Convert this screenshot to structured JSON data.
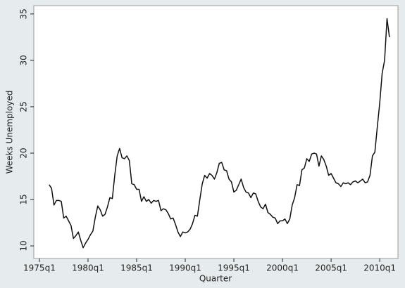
{
  "chart_data": {
    "type": "line",
    "x_label": "Quarter",
    "y_label": "Weeks Unemployed",
    "x": [
      64,
      65,
      66,
      67,
      68,
      69,
      70,
      71,
      72,
      73,
      74,
      75,
      76,
      77,
      78,
      79,
      80,
      81,
      82,
      83,
      84,
      85,
      86,
      87,
      88,
      89,
      90,
      91,
      92,
      93,
      94,
      95,
      96,
      97,
      98,
      99,
      100,
      101,
      102,
      103,
      104,
      105,
      106,
      107,
      108,
      109,
      110,
      111,
      112,
      113,
      114,
      115,
      116,
      117,
      118,
      119,
      120,
      121,
      122,
      123,
      124,
      125,
      126,
      127,
      128,
      129,
      130,
      131,
      132,
      133,
      134,
      135,
      136,
      137,
      138,
      139,
      140,
      141,
      142,
      143,
      144,
      145,
      146,
      147,
      148,
      149,
      150,
      151,
      152,
      153,
      154,
      155,
      156,
      157,
      158,
      159,
      160,
      161,
      162,
      163,
      164,
      165,
      166,
      167,
      168,
      169,
      170,
      171,
      172,
      173,
      174,
      175,
      176,
      177,
      178,
      179,
      180,
      181,
      182,
      183,
      184,
      185,
      186,
      187,
      188,
      189,
      190,
      191,
      192,
      193,
      194,
      195,
      196,
      197,
      198,
      199,
      200,
      201,
      202,
      203,
      204
    ],
    "values": [
      16.6,
      16.2,
      14.4,
      14.9,
      14.9,
      14.8,
      13.0,
      13.2,
      12.7,
      12.2,
      10.8,
      11.1,
      11.5,
      10.6,
      9.8,
      10.3,
      10.7,
      11.2,
      11.6,
      13.1,
      14.3,
      13.9,
      13.2,
      13.4,
      14.2,
      15.2,
      15.1,
      17.6,
      19.7,
      20.5,
      19.5,
      19.4,
      19.7,
      19.2,
      16.7,
      16.6,
      16.1,
      16.1,
      14.8,
      15.3,
      14.8,
      15.0,
      14.6,
      14.9,
      14.8,
      14.9,
      13.8,
      14.0,
      13.9,
      13.5,
      12.9,
      13.0,
      12.3,
      11.5,
      11.0,
      11.5,
      11.4,
      11.5,
      11.8,
      12.4,
      13.3,
      13.2,
      15.0,
      16.7,
      17.6,
      17.3,
      17.8,
      17.6,
      17.2,
      17.9,
      18.9,
      19.0,
      18.2,
      18.1,
      17.2,
      16.9,
      15.8,
      16.0,
      16.6,
      17.2,
      16.3,
      15.8,
      15.7,
      15.2,
      15.7,
      15.6,
      14.8,
      14.2,
      14.0,
      14.5,
      13.6,
      13.4,
      13.1,
      13.0,
      12.4,
      12.7,
      12.7,
      12.9,
      12.4,
      12.9,
      14.4,
      15.2,
      16.6,
      16.5,
      18.2,
      18.4,
      19.4,
      19.1,
      19.9,
      20.0,
      19.9,
      18.6,
      19.7,
      19.3,
      18.6,
      17.6,
      17.8,
      17.3,
      16.8,
      16.7,
      16.4,
      16.8,
      16.7,
      16.8,
      16.6,
      16.9,
      17.0,
      16.8,
      17.0,
      17.2,
      16.8,
      16.9,
      17.6,
      19.7,
      20.1,
      22.8,
      25.4,
      28.6,
      30.0,
      34.5,
      32.5
    ],
    "color": "#111111",
    "xlim": [
      57.7,
      207.5
    ],
    "ylim": [
      8.64,
      35.9
    ],
    "xticks": [
      {
        "value": 60,
        "label": "1975q1"
      },
      {
        "value": 80,
        "label": "1980q1"
      },
      {
        "value": 100,
        "label": "1985q1"
      },
      {
        "value": 120,
        "label": "1990q1"
      },
      {
        "value": 140,
        "label": "1995q1"
      },
      {
        "value": 160,
        "label": "2000q1"
      },
      {
        "value": 180,
        "label": "2005q1"
      },
      {
        "value": 200,
        "label": "2010q1"
      }
    ],
    "yticks": [
      10,
      15,
      20,
      25,
      30,
      35
    ],
    "grid": false
  }
}
